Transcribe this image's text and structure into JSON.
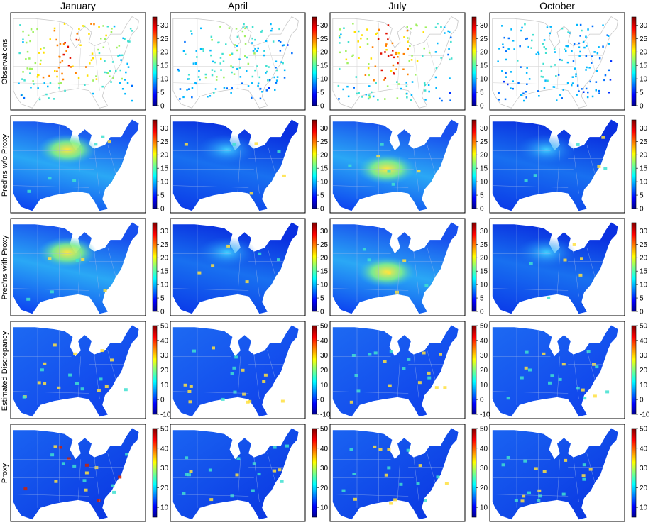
{
  "columns": [
    "January",
    "April",
    "July",
    "October"
  ],
  "rows": [
    {
      "label": "Observations",
      "scale": {
        "ticks": [
          0,
          5,
          10,
          15,
          20,
          25,
          30
        ],
        "min": 0,
        "max": 33
      }
    },
    {
      "label": "Pred'ns w/o Proxy",
      "scale": {
        "ticks": [
          0,
          5,
          10,
          15,
          20,
          25,
          30
        ],
        "min": 0,
        "max": 33
      }
    },
    {
      "label": "Pred'ns with Proxy",
      "scale": {
        "ticks": [
          0,
          5,
          10,
          15,
          20,
          25,
          30
        ],
        "min": 0,
        "max": 33
      }
    },
    {
      "label": "Estimated Discrepancy",
      "scale": {
        "ticks": [
          -10,
          0,
          10,
          20,
          30,
          40,
          50
        ],
        "min": -10,
        "max": 50
      }
    },
    {
      "label": "Proxy",
      "scale": {
        "ticks": [
          10,
          20,
          30,
          40,
          50
        ],
        "min": 5,
        "max": 50
      }
    }
  ],
  "colormap": [
    "#00008f",
    "#0000ff",
    "#0080ff",
    "#00ffff",
    "#80ff80",
    "#ffff00",
    "#ff8000",
    "#ff0000",
    "#800000"
  ],
  "chart_data": {
    "type": "heatmap",
    "layout": "grid of maps of the eastern United States, 5 rows x 4 columns",
    "columns": [
      "January",
      "April",
      "July",
      "October"
    ],
    "row_labels": [
      "Observations",
      "Pred'ns w/o Proxy",
      "Pred'ns with Proxy",
      "Estimated Discrepancy",
      "Proxy"
    ],
    "colorbars": [
      {
        "row": "Observations",
        "ticks": [
          0,
          5,
          10,
          15,
          20,
          25,
          30
        ],
        "range": [
          0,
          33
        ]
      },
      {
        "row": "Pred'ns w/o Proxy",
        "ticks": [
          0,
          5,
          10,
          15,
          20,
          25,
          30
        ],
        "range": [
          0,
          33
        ]
      },
      {
        "row": "Pred'ns with Proxy",
        "ticks": [
          0,
          5,
          10,
          15,
          20,
          25,
          30
        ],
        "range": [
          0,
          33
        ]
      },
      {
        "row": "Estimated Discrepancy",
        "ticks": [
          -10,
          0,
          10,
          20,
          30,
          40,
          50
        ],
        "range": [
          -10,
          50
        ]
      },
      {
        "row": "Proxy",
        "ticks": [
          10,
          20,
          30,
          40,
          50
        ],
        "range": [
          5,
          50
        ]
      }
    ],
    "grid": false,
    "legend": "colorbar right of each panel"
  }
}
